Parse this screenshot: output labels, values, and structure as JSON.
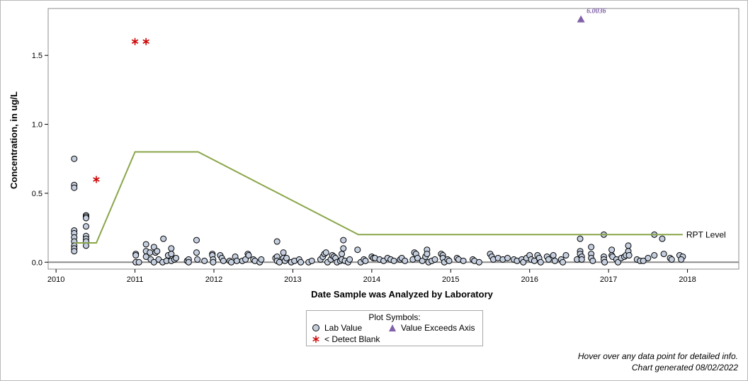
{
  "chart_data": {
    "type": "scatter",
    "xlabel": "Date Sample was Analyzed by Laboratory",
    "ylabel": "Concentration, in ug/L",
    "xlim": [
      2009.9,
      2018.65
    ],
    "ylim": [
      -0.05,
      1.84
    ],
    "x_ticks": [
      "2010",
      "2011",
      "2012",
      "2013",
      "2014",
      "2015",
      "2016",
      "2017",
      "2018"
    ],
    "y_ticks": [
      "0.0",
      "0.5",
      "1.0",
      "1.5"
    ],
    "series": [
      {
        "name": "Lab Value",
        "marker": "circle",
        "color": "#c5cfdf",
        "points": [
          [
            2010.23,
            0.75
          ],
          [
            2010.23,
            0.56
          ],
          [
            2010.23,
            0.54
          ],
          [
            2010.23,
            0.23
          ],
          [
            2010.23,
            0.21
          ],
          [
            2010.23,
            0.18
          ],
          [
            2010.23,
            0.15
          ],
          [
            2010.23,
            0.12
          ],
          [
            2010.23,
            0.1
          ],
          [
            2010.23,
            0.08
          ],
          [
            2010.38,
            0.34
          ],
          [
            2010.38,
            0.33
          ],
          [
            2010.38,
            0.32
          ],
          [
            2010.38,
            0.26
          ],
          [
            2010.38,
            0.19
          ],
          [
            2010.38,
            0.17
          ],
          [
            2010.38,
            0.15
          ],
          [
            2010.38,
            0.12
          ],
          [
            2011.01,
            0.06
          ],
          [
            2011.01,
            0.05
          ],
          [
            2011.01,
            0.0
          ],
          [
            2011.05,
            0.0
          ],
          [
            2011.14,
            0.13
          ],
          [
            2011.14,
            0.08
          ],
          [
            2011.14,
            0.04
          ],
          [
            2011.19,
            0.07
          ],
          [
            2011.2,
            0.02
          ],
          [
            2011.24,
            0.11
          ],
          [
            2011.26,
            0.07
          ],
          [
            2011.24,
            0.0
          ],
          [
            2011.28,
            0.08
          ],
          [
            2011.3,
            0.02
          ],
          [
            2011.35,
            0.0
          ],
          [
            2011.36,
            0.17
          ],
          [
            2011.4,
            0.01
          ],
          [
            2011.42,
            0.05
          ],
          [
            2011.46,
            0.1
          ],
          [
            2011.46,
            0.06
          ],
          [
            2011.46,
            0.01
          ],
          [
            2011.5,
            0.02
          ],
          [
            2011.52,
            0.03
          ],
          [
            2011.66,
            0.01
          ],
          [
            2011.68,
            0.02
          ],
          [
            2011.68,
            0.0
          ],
          [
            2011.78,
            0.07
          ],
          [
            2011.78,
            0.16
          ],
          [
            2011.79,
            0.02
          ],
          [
            2011.88,
            0.01
          ],
          [
            2011.98,
            0.06
          ],
          [
            2011.98,
            0.05
          ],
          [
            2011.99,
            0.02
          ],
          [
            2011.99,
            0.0
          ],
          [
            2012.08,
            0.05
          ],
          [
            2012.1,
            0.03
          ],
          [
            2012.12,
            0.01
          ],
          [
            2012.2,
            0.01
          ],
          [
            2012.22,
            0.0
          ],
          [
            2012.27,
            0.04
          ],
          [
            2012.29,
            0.01
          ],
          [
            2012.36,
            0.01
          ],
          [
            2012.4,
            0.02
          ],
          [
            2012.43,
            0.06
          ],
          [
            2012.44,
            0.05
          ],
          [
            2012.5,
            0.02
          ],
          [
            2012.52,
            0.01
          ],
          [
            2012.58,
            0.0
          ],
          [
            2012.6,
            0.02
          ],
          [
            2012.78,
            0.03
          ],
          [
            2012.8,
            0.15
          ],
          [
            2012.8,
            0.04
          ],
          [
            2012.8,
            0.01
          ],
          [
            2012.83,
            0.0
          ],
          [
            2012.88,
            0.07
          ],
          [
            2012.88,
            0.03
          ],
          [
            2012.9,
            0.01
          ],
          [
            2012.92,
            0.03
          ],
          [
            2012.98,
            0.0
          ],
          [
            2013.02,
            0.01
          ],
          [
            2013.08,
            0.02
          ],
          [
            2013.1,
            0.0
          ],
          [
            2013.2,
            0.0
          ],
          [
            2013.24,
            0.01
          ],
          [
            2013.35,
            0.02
          ],
          [
            2013.38,
            0.04
          ],
          [
            2013.4,
            0.06
          ],
          [
            2013.42,
            0.07
          ],
          [
            2013.44,
            0.0
          ],
          [
            2013.48,
            0.02
          ],
          [
            2013.5,
            0.05
          ],
          [
            2013.52,
            0.04
          ],
          [
            2013.54,
            0.03
          ],
          [
            2013.56,
            0.0
          ],
          [
            2013.6,
            0.01
          ],
          [
            2013.62,
            0.02
          ],
          [
            2013.62,
            0.06
          ],
          [
            2013.64,
            0.1
          ],
          [
            2013.64,
            0.16
          ],
          [
            2013.66,
            0.01
          ],
          [
            2013.7,
            0.0
          ],
          [
            2013.72,
            0.02
          ],
          [
            2013.82,
            0.09
          ],
          [
            2013.86,
            0.0
          ],
          [
            2013.9,
            0.02
          ],
          [
            2013.92,
            0.01
          ],
          [
            2014.0,
            0.04
          ],
          [
            2014.02,
            0.03
          ],
          [
            2014.04,
            0.03
          ],
          [
            2014.1,
            0.02
          ],
          [
            2014.15,
            0.01
          ],
          [
            2014.2,
            0.03
          ],
          [
            2014.24,
            0.02
          ],
          [
            2014.28,
            0.01
          ],
          [
            2014.36,
            0.02
          ],
          [
            2014.38,
            0.03
          ],
          [
            2014.42,
            0.01
          ],
          [
            2014.52,
            0.02
          ],
          [
            2014.54,
            0.07
          ],
          [
            2014.56,
            0.06
          ],
          [
            2014.58,
            0.03
          ],
          [
            2014.64,
            0.01
          ],
          [
            2014.68,
            0.04
          ],
          [
            2014.7,
            0.09
          ],
          [
            2014.7,
            0.06
          ],
          [
            2014.72,
            0.0
          ],
          [
            2014.76,
            0.01
          ],
          [
            2014.8,
            0.02
          ],
          [
            2014.88,
            0.06
          ],
          [
            2014.9,
            0.05
          ],
          [
            2014.9,
            0.03
          ],
          [
            2014.92,
            0.0
          ],
          [
            2014.96,
            0.02
          ],
          [
            2014.98,
            0.01
          ],
          [
            2015.08,
            0.03
          ],
          [
            2015.1,
            0.02
          ],
          [
            2015.16,
            0.01
          ],
          [
            2015.28,
            0.02
          ],
          [
            2015.3,
            0.01
          ],
          [
            2015.36,
            0.0
          ],
          [
            2015.5,
            0.06
          ],
          [
            2015.52,
            0.04
          ],
          [
            2015.54,
            0.02
          ],
          [
            2015.6,
            0.03
          ],
          [
            2015.66,
            0.02
          ],
          [
            2015.72,
            0.03
          ],
          [
            2015.8,
            0.02
          ],
          [
            2015.84,
            0.01
          ],
          [
            2015.9,
            0.02
          ],
          [
            2015.92,
            0.0
          ],
          [
            2015.96,
            0.03
          ],
          [
            2016.0,
            0.05
          ],
          [
            2016.02,
            0.02
          ],
          [
            2016.06,
            0.01
          ],
          [
            2016.1,
            0.05
          ],
          [
            2016.12,
            0.03
          ],
          [
            2016.14,
            0.0
          ],
          [
            2016.22,
            0.04
          ],
          [
            2016.24,
            0.02
          ],
          [
            2016.3,
            0.05
          ],
          [
            2016.32,
            0.01
          ],
          [
            2016.4,
            0.02
          ],
          [
            2016.42,
            0.0
          ],
          [
            2016.46,
            0.05
          ],
          [
            2016.6,
            0.02
          ],
          [
            2016.64,
            0.17
          ],
          [
            2016.64,
            0.08
          ],
          [
            2016.64,
            0.06
          ],
          [
            2016.66,
            0.04
          ],
          [
            2016.66,
            0.02
          ],
          [
            2016.78,
            0.11
          ],
          [
            2016.78,
            0.06
          ],
          [
            2016.78,
            0.03
          ],
          [
            2016.8,
            0.01
          ],
          [
            2016.94,
            0.2
          ],
          [
            2016.94,
            0.04
          ],
          [
            2016.94,
            0.02
          ],
          [
            2016.95,
            0.0
          ],
          [
            2017.04,
            0.09
          ],
          [
            2017.04,
            0.05
          ],
          [
            2017.05,
            0.04
          ],
          [
            2017.1,
            0.02
          ],
          [
            2017.12,
            0.0
          ],
          [
            2017.16,
            0.03
          ],
          [
            2017.2,
            0.04
          ],
          [
            2017.22,
            0.05
          ],
          [
            2017.25,
            0.12
          ],
          [
            2017.25,
            0.08
          ],
          [
            2017.26,
            0.05
          ],
          [
            2017.36,
            0.02
          ],
          [
            2017.4,
            0.01
          ],
          [
            2017.44,
            0.01
          ],
          [
            2017.5,
            0.03
          ],
          [
            2017.58,
            0.2
          ],
          [
            2017.58,
            0.05
          ],
          [
            2017.68,
            0.17
          ],
          [
            2017.7,
            0.06
          ],
          [
            2017.78,
            0.03
          ],
          [
            2017.8,
            0.02
          ],
          [
            2017.9,
            0.05
          ],
          [
            2017.94,
            0.04
          ],
          [
            2017.92,
            0.02
          ]
        ]
      },
      {
        "name": "< Detect Blank",
        "marker": "star",
        "color": "#cc0000",
        "points": [
          [
            2010.51,
            0.6
          ],
          [
            2011.0,
            1.6
          ],
          [
            2011.14,
            1.6
          ]
        ]
      },
      {
        "name": "Value Exceeds Axis",
        "marker": "triangle",
        "color": "#8060a8",
        "points": [
          [
            2016.65,
            1.76
          ]
        ],
        "labels": [
          "6.0036"
        ]
      },
      {
        "name": "RPT Level",
        "marker": "line",
        "color": "#8aa64a",
        "points": [
          [
            2010.23,
            0.14
          ],
          [
            2010.51,
            0.14
          ],
          [
            2011.0,
            0.8
          ],
          [
            2011.8,
            0.8
          ],
          [
            2013.83,
            0.2
          ],
          [
            2017.94,
            0.2
          ]
        ]
      }
    ],
    "reference_line": {
      "y": 0.0,
      "color": "#8c8c8c"
    },
    "grid": false,
    "legend_position": "bottom-center"
  },
  "legend": {
    "title": "Plot Symbols:",
    "items": [
      "Lab Value",
      "Value Exceeds Axis",
      "< Detect Blank"
    ]
  },
  "footnotes": {
    "hover": "Hover over any data point for detailed info.",
    "generated": "Chart generated 08/02/2022"
  }
}
